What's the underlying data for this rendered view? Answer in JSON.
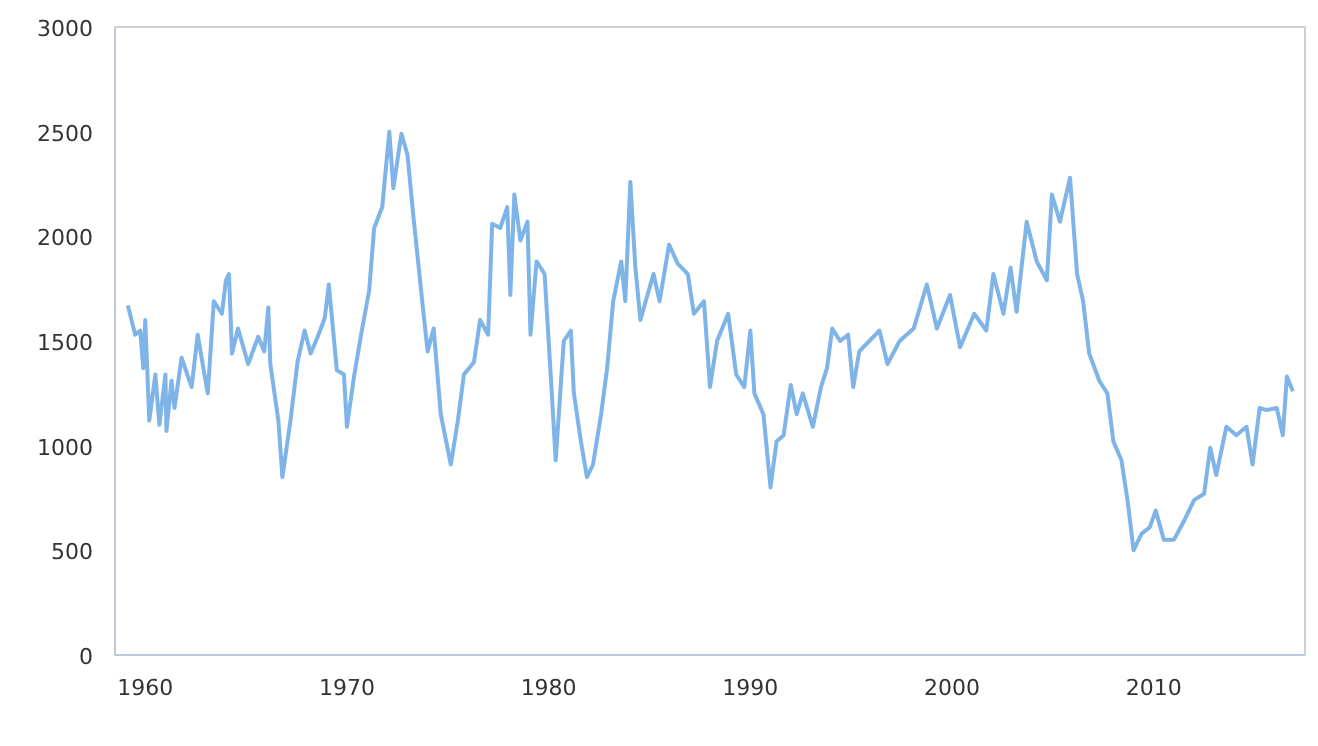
{
  "chart_data": {
    "type": "line",
    "x": [
      1959.14,
      1959.5,
      1959.75,
      1959.9,
      1960.0,
      1960.2,
      1960.5,
      1960.7,
      1961.0,
      1961.05,
      1961.3,
      1961.45,
      1961.8,
      1962.3,
      1962.6,
      1962.9,
      1963.1,
      1963.4,
      1963.8,
      1964.0,
      1964.15,
      1964.3,
      1964.6,
      1965.1,
      1965.6,
      1965.9,
      1966.1,
      1966.2,
      1966.6,
      1966.8,
      1967.2,
      1967.55,
      1967.9,
      1968.2,
      1968.55,
      1968.9,
      1969.1,
      1969.5,
      1969.85,
      1970.0,
      1970.35,
      1970.7,
      1971.1,
      1971.35,
      1971.75,
      1972.1,
      1972.3,
      1972.7,
      1973.0,
      1973.3,
      1973.7,
      1974.0,
      1974.3,
      1974.65,
      1975.15,
      1975.5,
      1975.8,
      1976.3,
      1976.6,
      1977.0,
      1977.2,
      1977.6,
      1977.95,
      1978.1,
      1978.3,
      1978.6,
      1978.95,
      1979.1,
      1979.4,
      1979.8,
      1980.1,
      1980.35,
      1980.75,
      1981.1,
      1981.25,
      1981.6,
      1981.9,
      1982.2,
      1982.6,
      1982.9,
      1983.2,
      1983.6,
      1983.8,
      1984.05,
      1984.3,
      1984.55,
      1984.9,
      1985.2,
      1985.5,
      1985.97,
      1986.4,
      1986.9,
      1987.2,
      1987.7,
      1988.0,
      1988.35,
      1988.9,
      1989.3,
      1989.7,
      1990.0,
      1990.2,
      1990.65,
      1991.0,
      1991.3,
      1991.65,
      1992.0,
      1992.3,
      1992.6,
      1993.1,
      1993.5,
      1993.8,
      1994.06,
      1994.45,
      1994.85,
      1995.1,
      1995.4,
      1995.9,
      1996.4,
      1996.8,
      1997.4,
      1998.1,
      1998.75,
      1999.25,
      1999.9,
      2000.4,
      2001.1,
      2001.7,
      2002.05,
      2002.55,
      2002.9,
      2003.2,
      2003.7,
      2004.2,
      2004.7,
      2004.95,
      2005.35,
      2005.85,
      2006.2,
      2006.5,
      2006.8,
      2007.3,
      2007.7,
      2008.0,
      2008.4,
      2008.7,
      2009.0,
      2009.4,
      2009.8,
      2010.1,
      2010.5,
      2011.0,
      2011.5,
      2012.0,
      2012.5,
      2012.8,
      2013.1,
      2013.6,
      2014.1,
      2014.6,
      2014.9,
      2015.25,
      2015.6,
      2016.1,
      2016.4,
      2016.6,
      2016.9
    ],
    "series": [
      {
        "color": "#7eb4e8",
        "values": [
          1670,
          1530,
          1550,
          1370,
          1600,
          1120,
          1340,
          1100,
          1340,
          1070,
          1310,
          1180,
          1420,
          1280,
          1530,
          1360,
          1250,
          1690,
          1630,
          1790,
          1820,
          1440,
          1560,
          1390,
          1520,
          1450,
          1660,
          1390,
          1120,
          850,
          1120,
          1400,
          1550,
          1440,
          1520,
          1610,
          1770,
          1360,
          1340,
          1090,
          1330,
          1530,
          1740,
          2040,
          2140,
          2500,
          2230,
          2490,
          2390,
          2090,
          1720,
          1450,
          1560,
          1150,
          910,
          1120,
          1340,
          1400,
          1600,
          1530,
          2060,
          2040,
          2140,
          1720,
          2200,
          1980,
          2070,
          1530,
          1880,
          1820,
          1340,
          930,
          1500,
          1550,
          1250,
          1020,
          850,
          910,
          1150,
          1370,
          1690,
          1880,
          1690,
          2260,
          1850,
          1600,
          1720,
          1820,
          1690,
          1960,
          1870,
          1820,
          1630,
          1690,
          1280,
          1500,
          1630,
          1340,
          1280,
          1550,
          1250,
          1150,
          800,
          1020,
          1050,
          1290,
          1150,
          1250,
          1090,
          1280,
          1370,
          1560,
          1500,
          1530,
          1280,
          1450,
          1500,
          1550,
          1390,
          1500,
          1560,
          1770,
          1560,
          1720,
          1470,
          1630,
          1550,
          1820,
          1630,
          1850,
          1640,
          2070,
          1880,
          1790,
          2200,
          2070,
          2280,
          1820,
          1690,
          1440,
          1310,
          1250,
          1020,
          930,
          740,
          500,
          580,
          610,
          690,
          550,
          550,
          640,
          740,
          770,
          990,
          860,
          1090,
          1050,
          1090,
          910,
          1180,
          1170,
          1180,
          1050,
          1330,
          1260
        ]
      }
    ],
    "xlim": [
      1958.5,
      2017.5
    ],
    "xticks": [
      1960,
      1970,
      1980,
      1990,
      2000,
      2010
    ],
    "ylim": [
      0,
      3000
    ],
    "yticks": [
      0,
      500,
      1000,
      1500,
      2000,
      2500,
      3000
    ],
    "grid": false,
    "marker": "none",
    "line_style": "solid"
  }
}
